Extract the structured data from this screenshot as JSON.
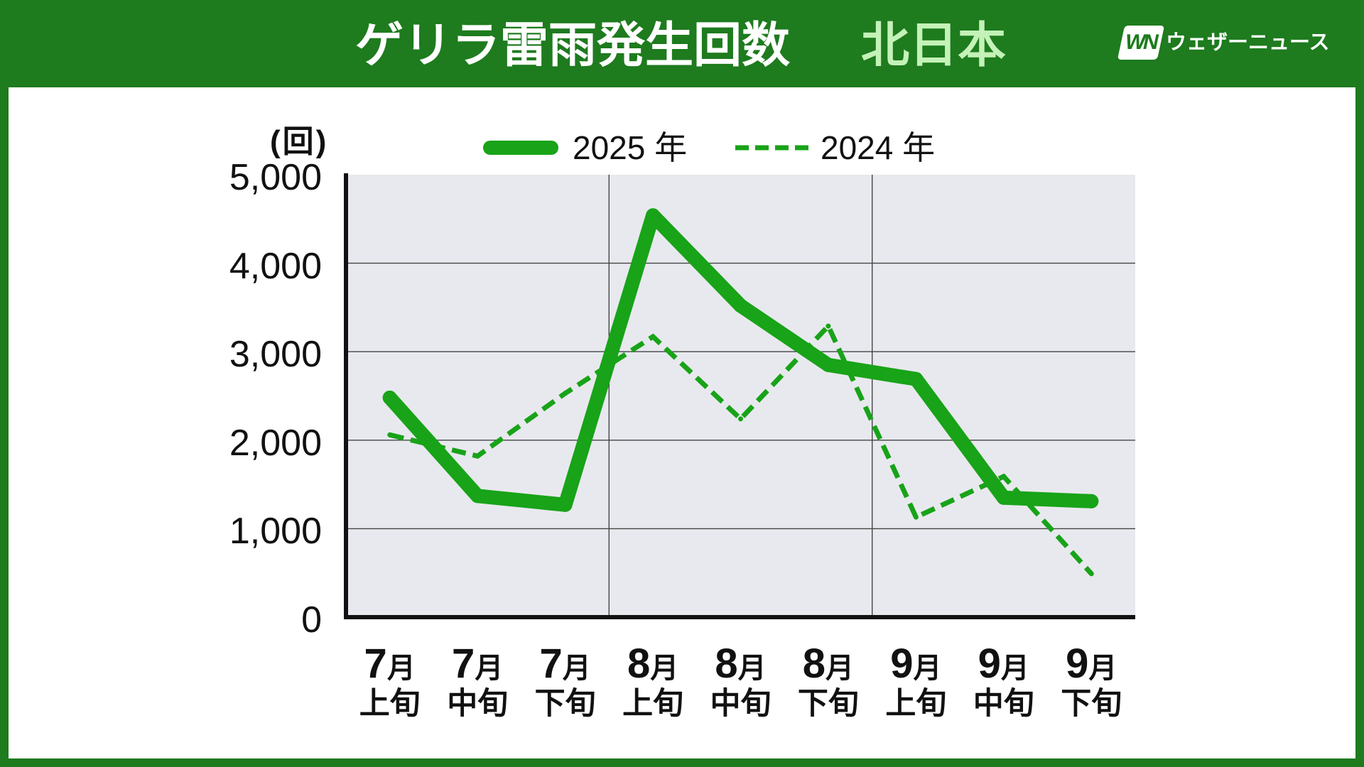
{
  "colors": {
    "frame": "#1e7b1e",
    "title_text": "#ffffff",
    "subtitle_text": "#c4f2b8",
    "panel": "#ffffff",
    "plot_bg": "#e8e9ee",
    "grid": "#444444",
    "axis": "#111111",
    "text": "#111111"
  },
  "brand": {
    "logo_text": "WN",
    "name": "ウェザーニュース"
  },
  "chart_data": {
    "type": "line",
    "title": "ゲリラ雷雨発生回数",
    "subtitle": "北日本",
    "ylabel": "(回)",
    "ylim": [
      0,
      5000
    ],
    "y_ticks": [
      0,
      1000,
      2000,
      3000,
      4000,
      5000
    ],
    "y_tick_labels": [
      "0",
      "1,000",
      "2,000",
      "3,000",
      "4,000",
      "5,000"
    ],
    "grid": true,
    "legend": "top",
    "categories": [
      {
        "month": "7月",
        "period": "上旬"
      },
      {
        "month": "7月",
        "period": "中旬"
      },
      {
        "month": "7月",
        "period": "下旬"
      },
      {
        "month": "8月",
        "period": "上旬"
      },
      {
        "month": "8月",
        "period": "中旬"
      },
      {
        "month": "8月",
        "period": "下旬"
      },
      {
        "month": "9月",
        "period": "上旬"
      },
      {
        "month": "9月",
        "period": "中旬"
      },
      {
        "month": "9月",
        "period": "下旬"
      }
    ],
    "series": [
      {
        "name": "2025 年",
        "color": "#18a318",
        "dash": false,
        "values": [
          2480,
          1370,
          1270,
          4540,
          3520,
          2850,
          2690,
          1350,
          1310
        ]
      },
      {
        "name": "2024 年",
        "color": "#18a318",
        "dash": true,
        "values": [
          2060,
          1820,
          2530,
          3170,
          2240,
          3290,
          1130,
          1590,
          490
        ]
      }
    ]
  }
}
